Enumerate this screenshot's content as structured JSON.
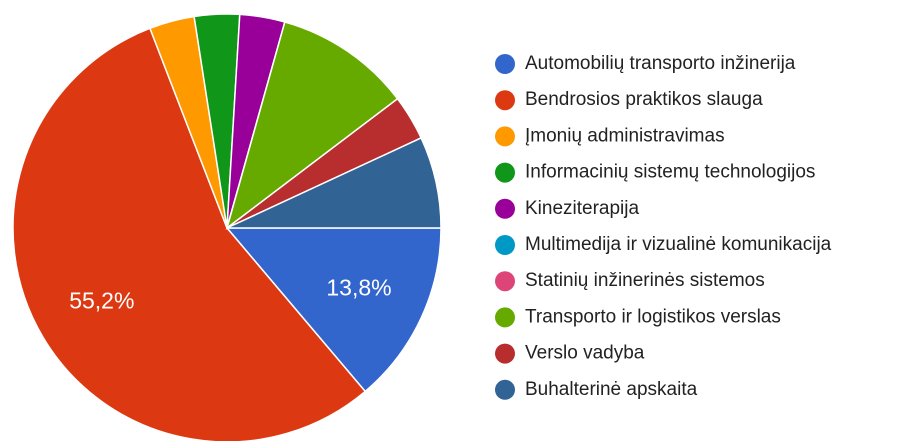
{
  "chart_data": {
    "type": "pie",
    "categories": [
      "Automobilių transporto inžinerija",
      "Bendrosios praktikos slauga",
      "Įmonių administravimas",
      "Informacinių sistemų technologijos",
      "Kineziterapija",
      "Multimedija ir vizualinė komunikacija",
      "Statinių inžinerinės sistemos",
      "Transporto ir logistikos verslas",
      "Verslo vadyba",
      "Buhalterinė apskaita"
    ],
    "values": [
      13.8,
      55.2,
      3.4,
      3.4,
      3.4,
      0,
      0,
      10.3,
      3.4,
      6.9
    ],
    "value_labels": [
      "13,8%",
      "55,2%",
      null,
      null,
      null,
      null,
      null,
      null,
      null,
      null
    ],
    "colors": [
      "#3366cc",
      "#dc3912",
      "#ff9900",
      "#109618",
      "#990099",
      "#0099c6",
      "#dd4477",
      "#66aa00",
      "#b82e2e",
      "#316395"
    ],
    "legend": "right"
  }
}
